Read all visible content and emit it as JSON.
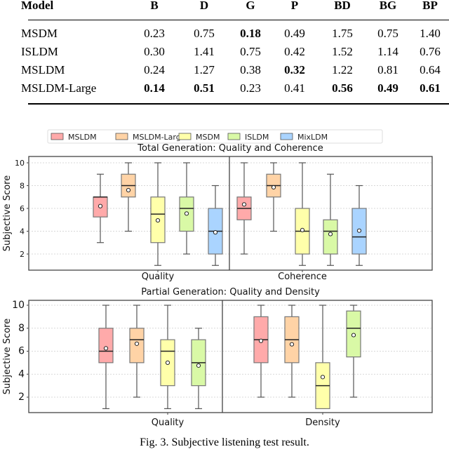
{
  "table": {
    "columns": [
      "Model",
      "B",
      "D",
      "G",
      "P",
      "BD",
      "BG",
      "BP"
    ],
    "rows": [
      {
        "model": "MSDM",
        "values": [
          "0.23",
          "0.75",
          "0.18",
          "0.49",
          "1.75",
          "0.75",
          "1.40"
        ],
        "bold": [
          false,
          false,
          true,
          false,
          false,
          false,
          false
        ]
      },
      {
        "model": "ISLDM",
        "values": [
          "0.30",
          "1.41",
          "0.75",
          "0.42",
          "1.52",
          "1.14",
          "0.76"
        ],
        "bold": [
          false,
          false,
          false,
          false,
          false,
          false,
          false
        ]
      },
      {
        "model": "MSLDM",
        "values": [
          "0.24",
          "1.27",
          "0.38",
          "0.32",
          "1.22",
          "0.81",
          "0.64"
        ],
        "bold": [
          false,
          false,
          false,
          true,
          false,
          false,
          false
        ]
      },
      {
        "model": "MSLDM-Large",
        "values": [
          "0.14",
          "0.51",
          "0.23",
          "0.41",
          "0.56",
          "0.49",
          "0.61"
        ],
        "bold": [
          true,
          true,
          false,
          false,
          true,
          true,
          true
        ]
      }
    ]
  },
  "legend": [
    {
      "name": "MSLDM",
      "color": "#ffaaaa"
    },
    {
      "name": "MSLDM-Large",
      "color": "#ffd3a6"
    },
    {
      "name": "MSDM",
      "color": "#ffffaa"
    },
    {
      "name": "ISLDM",
      "color": "#d9f9a6"
    },
    {
      "name": "MixLDM",
      "color": "#aad4ff"
    }
  ],
  "chart_data": [
    {
      "type": "box",
      "title": "Total Generation: Quality and Coherence",
      "ylabel": "Subjective Score",
      "ylim": [
        0.6,
        10.5
      ],
      "yticks": [
        2,
        4,
        6,
        8,
        10
      ],
      "grid": "horizontal dashed",
      "categories": [
        "Quality",
        "Coherence"
      ],
      "series": [
        {
          "name": "MSLDM",
          "boxes": [
            {
              "min": 3,
              "q1": 5.25,
              "median": 7,
              "q3": 7,
              "max": 9,
              "mean": 6.2
            },
            {
              "min": 2,
              "q1": 5,
              "median": 6,
              "q3": 7,
              "max": 10,
              "mean": 6.35
            }
          ]
        },
        {
          "name": "MSLDM-Large",
          "boxes": [
            {
              "min": 4,
              "q1": 7,
              "median": 8,
              "q3": 9,
              "max": 10,
              "mean": 7.6
            },
            {
              "min": 4,
              "q1": 7,
              "median": 8,
              "q3": 9,
              "max": 10,
              "mean": 7.85
            }
          ]
        },
        {
          "name": "MSDM",
          "boxes": [
            {
              "min": 1,
              "q1": 3,
              "median": 5.5,
              "q3": 7,
              "max": 10,
              "mean": 4.95
            },
            {
              "min": 1,
              "q1": 2,
              "median": 4,
              "q3": 6,
              "max": 10,
              "mean": 4.1
            }
          ]
        },
        {
          "name": "ISLDM",
          "boxes": [
            {
              "min": 2,
              "q1": 4,
              "median": 6,
              "q3": 7,
              "max": 10,
              "mean": 5.55
            },
            {
              "min": 1,
              "q1": 2,
              "median": 4,
              "q3": 5,
              "max": 9,
              "mean": 3.75
            }
          ]
        },
        {
          "name": "MixLDM",
          "boxes": [
            {
              "min": 1,
              "q1": 2,
              "median": 4,
              "q3": 6,
              "max": 8,
              "mean": 3.9
            },
            {
              "min": 1,
              "q1": 2,
              "median": 3.5,
              "q3": 6,
              "max": 8,
              "mean": 4.05
            }
          ]
        }
      ]
    },
    {
      "type": "box",
      "title": "Partial Generation: Quality and Density",
      "ylabel": "Subjective Score",
      "ylim": [
        0.6,
        10.5
      ],
      "yticks": [
        2,
        4,
        6,
        8,
        10
      ],
      "grid": "horizontal dashed",
      "categories": [
        "Quality",
        "Density"
      ],
      "series": [
        {
          "name": "MSLDM",
          "boxes": [
            {
              "min": 1,
              "q1": 5,
              "median": 6,
              "q3": 8,
              "max": 10,
              "mean": 6.25
            },
            {
              "min": 2,
              "q1": 5,
              "median": 7,
              "q3": 9,
              "max": 10,
              "mean": 6.9
            }
          ]
        },
        {
          "name": "MSLDM-Large",
          "boxes": [
            {
              "min": 2,
              "q1": 5,
              "median": 7,
              "q3": 8,
              "max": 10,
              "mean": 6.65
            },
            {
              "min": 2,
              "q1": 5,
              "median": 7,
              "q3": 9,
              "max": 10,
              "mean": 6.6
            }
          ]
        },
        {
          "name": "MSDM",
          "boxes": [
            {
              "min": 1,
              "q1": 3,
              "median": 6,
              "q3": 7,
              "max": 10,
              "mean": 5
            },
            {
              "min": 1,
              "q1": 1,
              "median": 3,
              "q3": 5,
              "max": 10,
              "mean": 3.75
            }
          ]
        },
        {
          "name": "ISLDM",
          "boxes": [
            {
              "min": 1,
              "q1": 3,
              "median": 5,
              "q3": 7,
              "max": 8,
              "mean": 4.75
            },
            {
              "min": 2,
              "q1": 5.5,
              "median": 8,
              "q3": 9.5,
              "max": 10,
              "mean": 7.4
            }
          ]
        }
      ]
    }
  ],
  "caption": "Fig. 3.  Subjective listening test result."
}
